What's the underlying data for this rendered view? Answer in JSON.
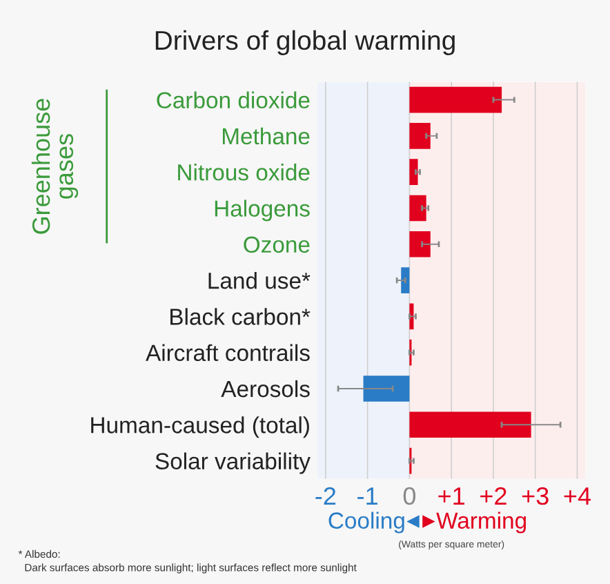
{
  "chart_data": {
    "type": "bar",
    "orientation": "horizontal",
    "title": "Drivers of global warming",
    "categories": [
      "Carbon dioxide",
      "Methane",
      "Nitrous oxide",
      "Halogens",
      "Ozone",
      "Land use*",
      "Black carbon*",
      "Aircraft contrails",
      "Aerosols",
      "Human-caused (total)",
      "Solar variability"
    ],
    "values": [
      2.2,
      0.5,
      0.2,
      0.4,
      0.5,
      -0.2,
      0.1,
      0.05,
      -1.1,
      2.9,
      0.05
    ],
    "colors": [
      "#e1001e",
      "#e1001e",
      "#e1001e",
      "#e1001e",
      "#e1001e",
      "#2a7cc6",
      "#e1001e",
      "#e1001e",
      "#2a7cc6",
      "#e1001e",
      "#e1001e"
    ],
    "errors": [
      [
        2.0,
        2.5
      ],
      [
        0.4,
        0.65
      ],
      [
        0.15,
        0.25
      ],
      [
        0.3,
        0.45
      ],
      [
        0.3,
        0.7
      ],
      [
        -0.3,
        -0.1
      ],
      [
        0.0,
        0.15
      ],
      [
        0.0,
        0.1
      ],
      [
        -1.7,
        -0.4
      ],
      [
        2.2,
        3.6
      ],
      [
        0.0,
        0.1
      ]
    ],
    "xlim": [
      -2.2,
      4.2
    ],
    "xticks": [
      {
        "value": -2,
        "label": "-2"
      },
      {
        "value": -1,
        "label": "-1"
      },
      0,
      {
        "value": 1,
        "label": "+1"
      },
      {
        "value": 2,
        "label": "+2"
      },
      {
        "value": 3,
        "label": "+3"
      },
      {
        "value": 4,
        "label": "+4"
      }
    ],
    "xlabel": "(Watts per square meter)",
    "grid": "x",
    "bands": [
      {
        "axis": "x",
        "from": -2.2,
        "to": 0,
        "label": "Cooling",
        "color": "#eef3fb"
      },
      {
        "axis": "x",
        "from": 0,
        "to": 4.2,
        "label": "Warming",
        "color": "#fdeeee"
      }
    ],
    "annotations": [
      "Greenhouse gases",
      "* Albedo:",
      "Dark surfaces absorb more sunlight; light surfaces reflect more sunlight"
    ]
  }
}
